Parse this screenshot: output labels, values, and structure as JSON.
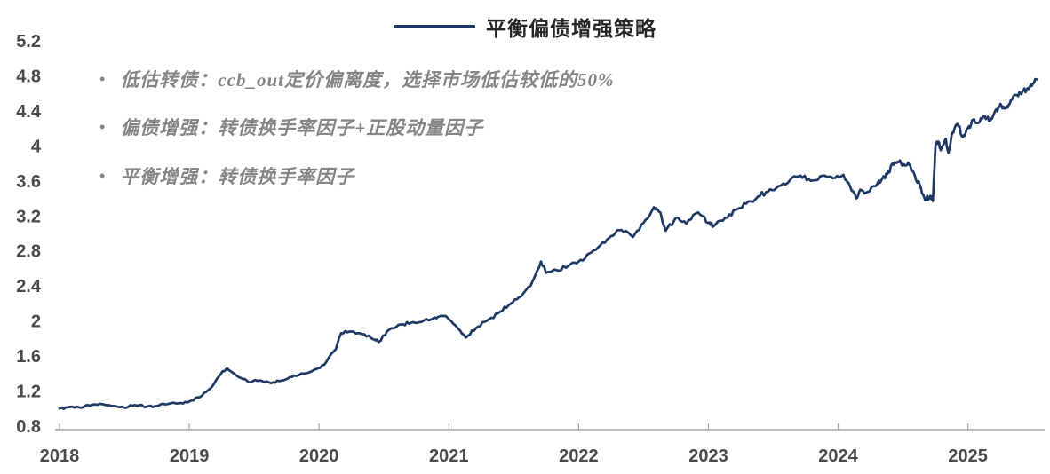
{
  "legend": {
    "label": "平衡偏债增强策略"
  },
  "annotations": [
    {
      "bullet": "•",
      "text": "低估转债：ccb_out定价偏离度，选择市场低估较低的50%"
    },
    {
      "bullet": "•",
      "text": "偏债增强：转债换手率因子+正股动量因子"
    },
    {
      "bullet": "•",
      "text": "平衡增强：转债换手率因子"
    }
  ],
  "colors": {
    "line": "#1f3864",
    "axis": "#a6a6a6",
    "tick_label": "#4a4a4a",
    "annotation_text": "#858585",
    "legend_text": "#262626",
    "background": "#ffffff"
  },
  "chart_data": {
    "type": "line",
    "title": "",
    "xlabel": "",
    "ylabel": "",
    "grid": false,
    "legend_position": "top-center",
    "xlim": [
      2018.0,
      2025.55
    ],
    "ylim": [
      0.8,
      5.2
    ],
    "x_ticks": [
      2018,
      2019,
      2020,
      2021,
      2022,
      2023,
      2024,
      2025
    ],
    "y_ticks": [
      0.8,
      1.2,
      1.6,
      2,
      2.4,
      2.8,
      3.2,
      3.6,
      4,
      4.4,
      4.8,
      5.2
    ],
    "series": [
      {
        "name": "平衡偏债增强策略",
        "color": "#1f3864",
        "points": [
          [
            2018.0,
            1.0
          ],
          [
            2018.08,
            1.02
          ],
          [
            2018.17,
            1.01
          ],
          [
            2018.25,
            1.04
          ],
          [
            2018.33,
            1.05
          ],
          [
            2018.42,
            1.03
          ],
          [
            2018.5,
            1.01
          ],
          [
            2018.58,
            1.04
          ],
          [
            2018.67,
            1.02
          ],
          [
            2018.75,
            1.03
          ],
          [
            2018.83,
            1.05
          ],
          [
            2018.92,
            1.06
          ],
          [
            2019.0,
            1.08
          ],
          [
            2019.08,
            1.13
          ],
          [
            2019.17,
            1.24
          ],
          [
            2019.25,
            1.41
          ],
          [
            2019.29,
            1.46
          ],
          [
            2019.38,
            1.36
          ],
          [
            2019.46,
            1.3
          ],
          [
            2019.54,
            1.32
          ],
          [
            2019.63,
            1.29
          ],
          [
            2019.71,
            1.32
          ],
          [
            2019.79,
            1.36
          ],
          [
            2019.88,
            1.4
          ],
          [
            2019.96,
            1.44
          ],
          [
            2020.04,
            1.5
          ],
          [
            2020.13,
            1.68
          ],
          [
            2020.17,
            1.86
          ],
          [
            2020.25,
            1.88
          ],
          [
            2020.33,
            1.85
          ],
          [
            2020.42,
            1.79
          ],
          [
            2020.46,
            1.76
          ],
          [
            2020.54,
            1.9
          ],
          [
            2020.63,
            1.96
          ],
          [
            2020.71,
            1.98
          ],
          [
            2020.79,
            1.99
          ],
          [
            2020.88,
            2.03
          ],
          [
            2020.94,
            2.06
          ],
          [
            2021.0,
            2.02
          ],
          [
            2021.08,
            1.9
          ],
          [
            2021.13,
            1.81
          ],
          [
            2021.21,
            1.92
          ],
          [
            2021.29,
            2.0
          ],
          [
            2021.38,
            2.09
          ],
          [
            2021.46,
            2.18
          ],
          [
            2021.54,
            2.27
          ],
          [
            2021.63,
            2.4
          ],
          [
            2021.71,
            2.68
          ],
          [
            2021.75,
            2.55
          ],
          [
            2021.83,
            2.58
          ],
          [
            2021.92,
            2.63
          ],
          [
            2022.0,
            2.68
          ],
          [
            2022.08,
            2.77
          ],
          [
            2022.17,
            2.87
          ],
          [
            2022.25,
            2.97
          ],
          [
            2022.33,
            3.04
          ],
          [
            2022.42,
            2.96
          ],
          [
            2022.5,
            3.12
          ],
          [
            2022.58,
            3.3
          ],
          [
            2022.63,
            3.24
          ],
          [
            2022.67,
            3.03
          ],
          [
            2022.75,
            3.18
          ],
          [
            2022.83,
            3.11
          ],
          [
            2022.92,
            3.24
          ],
          [
            2023.0,
            3.12
          ],
          [
            2023.04,
            3.08
          ],
          [
            2023.13,
            3.18
          ],
          [
            2023.21,
            3.27
          ],
          [
            2023.29,
            3.34
          ],
          [
            2023.38,
            3.42
          ],
          [
            2023.46,
            3.48
          ],
          [
            2023.54,
            3.54
          ],
          [
            2023.63,
            3.61
          ],
          [
            2023.71,
            3.66
          ],
          [
            2023.79,
            3.6
          ],
          [
            2023.88,
            3.66
          ],
          [
            2023.96,
            3.63
          ],
          [
            2024.04,
            3.67
          ],
          [
            2024.08,
            3.58
          ],
          [
            2024.14,
            3.4
          ],
          [
            2024.17,
            3.5
          ],
          [
            2024.21,
            3.46
          ],
          [
            2024.29,
            3.54
          ],
          [
            2024.33,
            3.6
          ],
          [
            2024.38,
            3.68
          ],
          [
            2024.42,
            3.8
          ],
          [
            2024.46,
            3.82
          ],
          [
            2024.5,
            3.78
          ],
          [
            2024.54,
            3.81
          ],
          [
            2024.58,
            3.7
          ],
          [
            2024.63,
            3.55
          ],
          [
            2024.67,
            3.38
          ],
          [
            2024.71,
            3.43
          ],
          [
            2024.73,
            3.37
          ],
          [
            2024.75,
            4.0
          ],
          [
            2024.77,
            4.05
          ],
          [
            2024.79,
            3.95
          ],
          [
            2024.83,
            4.08
          ],
          [
            2024.85,
            3.92
          ],
          [
            2024.88,
            4.15
          ],
          [
            2024.92,
            4.25
          ],
          [
            2024.96,
            4.1
          ],
          [
            2025.0,
            4.2
          ],
          [
            2025.04,
            4.3
          ],
          [
            2025.08,
            4.26
          ],
          [
            2025.13,
            4.34
          ],
          [
            2025.17,
            4.28
          ],
          [
            2025.21,
            4.4
          ],
          [
            2025.25,
            4.48
          ],
          [
            2025.29,
            4.43
          ],
          [
            2025.33,
            4.52
          ],
          [
            2025.38,
            4.58
          ],
          [
            2025.42,
            4.62
          ],
          [
            2025.46,
            4.66
          ],
          [
            2025.5,
            4.71
          ],
          [
            2025.53,
            4.76
          ]
        ]
      }
    ]
  }
}
